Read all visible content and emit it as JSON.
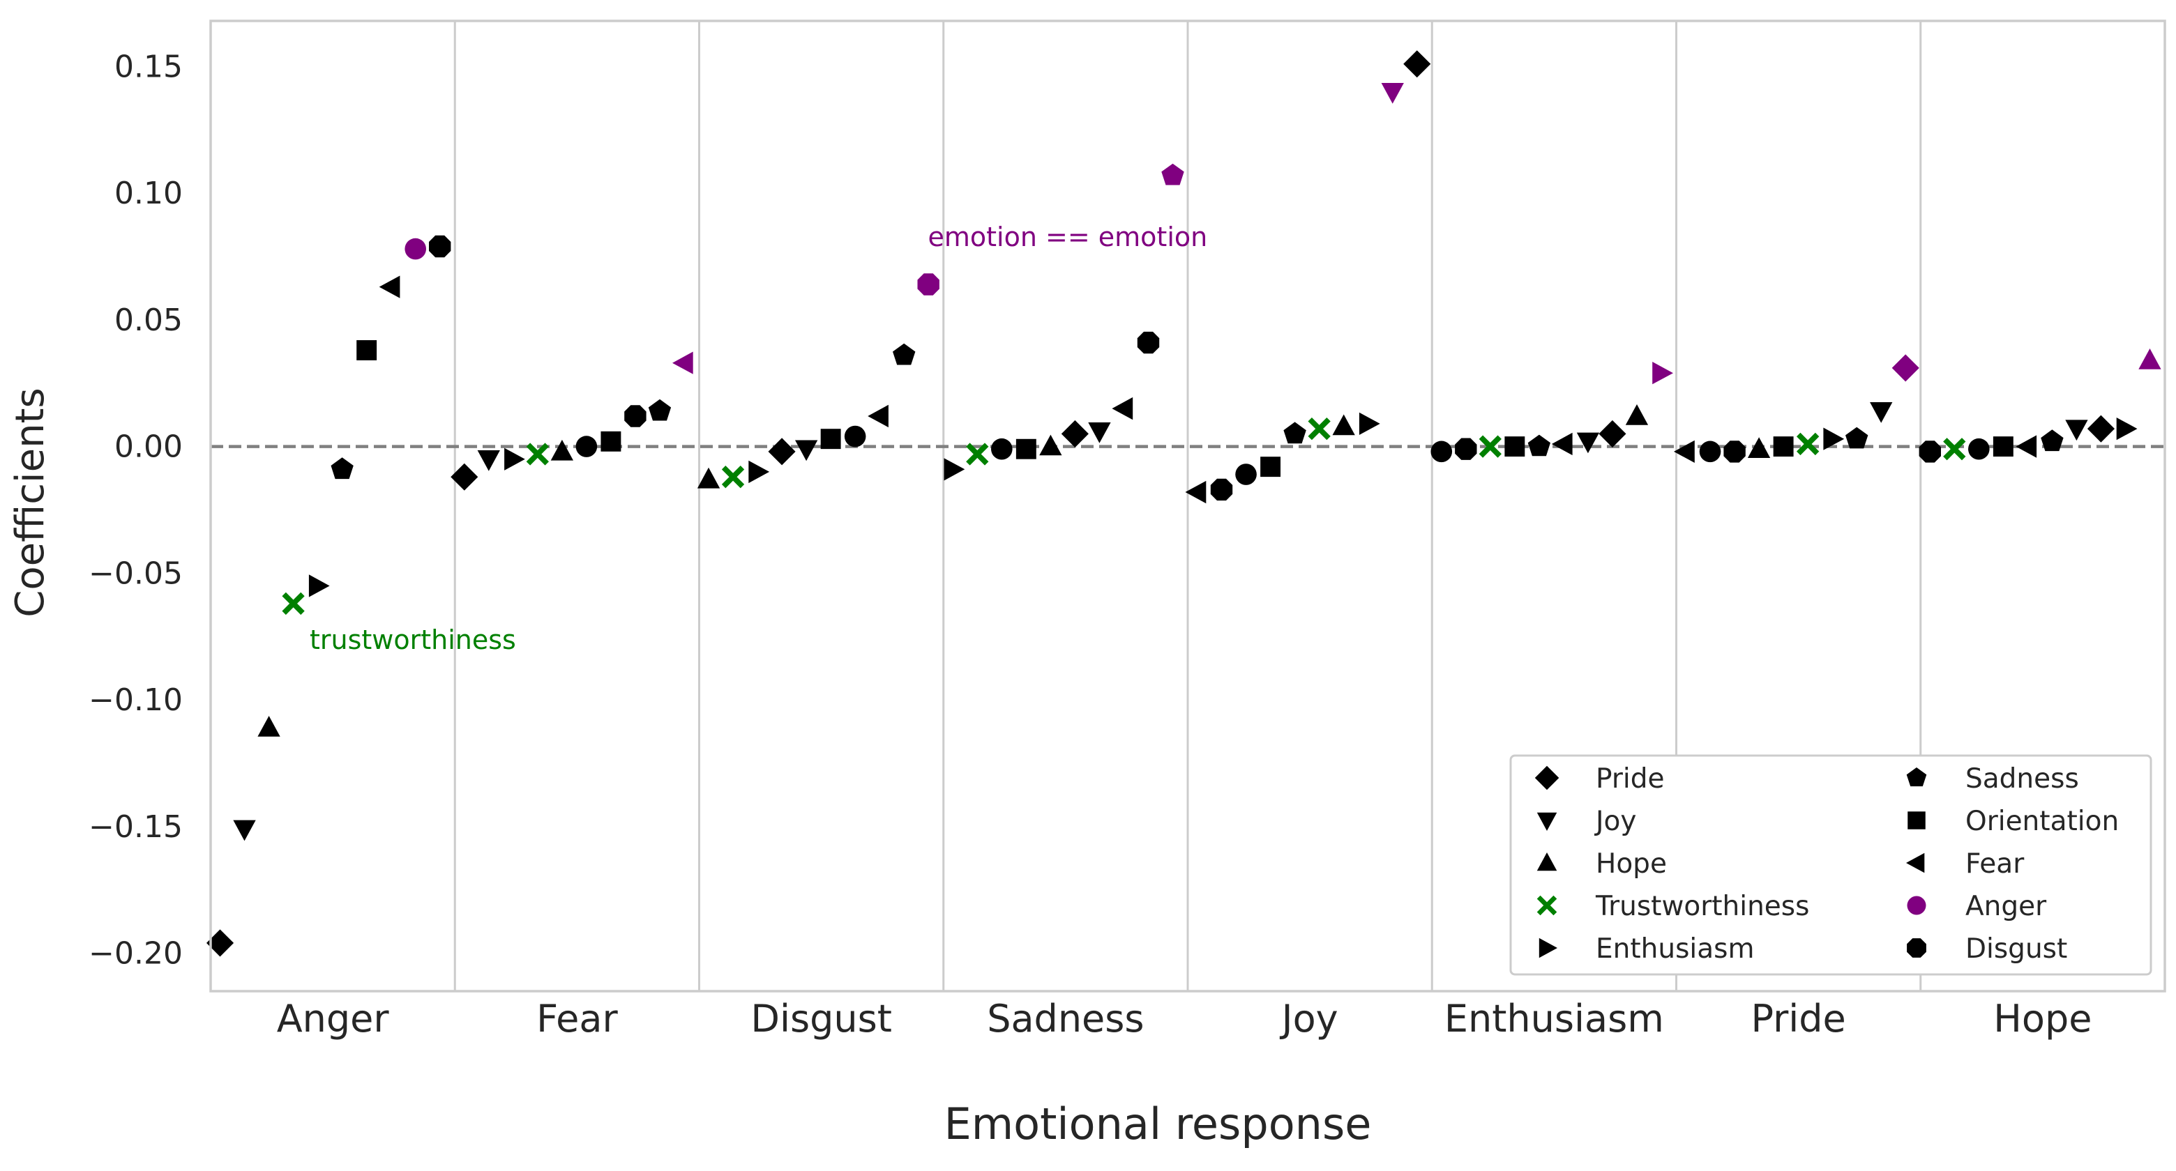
{
  "chart_data": {
    "type": "scatter",
    "xlabel": "Emotional response",
    "ylabel": "Coefficients",
    "ylim": [
      -0.215,
      0.168
    ],
    "yticks": [
      -0.2,
      -0.15,
      -0.1,
      -0.05,
      0.0,
      0.05,
      0.1,
      0.15
    ],
    "ytick_labels": [
      "−0.20",
      "−0.15",
      "−0.10",
      "−0.05",
      "0.00",
      "0.05",
      "0.10",
      "0.15"
    ],
    "categories": [
      "Anger",
      "Fear",
      "Disgust",
      "Sadness",
      "Joy",
      "Enthusiasm",
      "Pride",
      "Hope"
    ],
    "reference_line": 0.0,
    "grid": "vertical separators between groups",
    "legend_position": "lower right",
    "legend": [
      {
        "label": "Pride",
        "marker": "diamond",
        "color": "#000000"
      },
      {
        "label": "Joy",
        "marker": "triangle-down",
        "color": "#000000"
      },
      {
        "label": "Hope",
        "marker": "triangle-up",
        "color": "#000000"
      },
      {
        "label": "Trustworthiness",
        "marker": "x",
        "color": "#008000"
      },
      {
        "label": "Enthusiasm",
        "marker": "triangle-right",
        "color": "#000000"
      },
      {
        "label": "Sadness",
        "marker": "pentagon",
        "color": "#000000"
      },
      {
        "label": "Orientation",
        "marker": "square",
        "color": "#000000"
      },
      {
        "label": "Fear",
        "marker": "triangle-left",
        "color": "#000000"
      },
      {
        "label": "Anger",
        "marker": "circle",
        "color": "#800080"
      },
      {
        "label": "Disgust",
        "marker": "octagon",
        "color": "#000000"
      }
    ],
    "annotations": [
      {
        "text": "trustworthiness",
        "group": "Anger",
        "y": -0.076,
        "color": "#008000"
      },
      {
        "text": "emotion == emotion",
        "group": "Disgust",
        "y": 0.083,
        "color": "#800080"
      }
    ],
    "colors": {
      "black": "#000000",
      "highlight": "#800080",
      "trust": "#008000"
    },
    "groups": [
      {
        "name": "Anger",
        "points": [
          {
            "m": "diamond",
            "y": -0.196
          },
          {
            "m": "triangle-down",
            "y": -0.151
          },
          {
            "m": "triangle-up",
            "y": -0.111
          },
          {
            "m": "x",
            "y": -0.062
          },
          {
            "m": "triangle-right",
            "y": -0.055
          },
          {
            "m": "pentagon",
            "y": -0.009
          },
          {
            "m": "square",
            "y": 0.038
          },
          {
            "m": "triangle-left",
            "y": 0.063
          },
          {
            "m": "circle",
            "y": 0.078
          },
          {
            "m": "octagon",
            "y": 0.079
          }
        ]
      },
      {
        "name": "Fear",
        "points": [
          {
            "m": "diamond",
            "y": -0.012
          },
          {
            "m": "triangle-down",
            "y": -0.005
          },
          {
            "m": "triangle-right",
            "y": -0.005
          },
          {
            "m": "x",
            "y": -0.003
          },
          {
            "m": "triangle-up",
            "y": -0.002
          },
          {
            "m": "circle",
            "y": 0.0
          },
          {
            "m": "square",
            "y": 0.002
          },
          {
            "m": "octagon",
            "y": 0.012
          },
          {
            "m": "pentagon",
            "y": 0.014
          },
          {
            "m": "triangle-left",
            "y": 0.033
          }
        ]
      },
      {
        "name": "Disgust",
        "points": [
          {
            "m": "triangle-up",
            "y": -0.013
          },
          {
            "m": "x",
            "y": -0.012
          },
          {
            "m": "triangle-right",
            "y": -0.01
          },
          {
            "m": "diamond",
            "y": -0.002
          },
          {
            "m": "triangle-down",
            "y": -0.001
          },
          {
            "m": "square",
            "y": 0.003
          },
          {
            "m": "circle",
            "y": 0.004
          },
          {
            "m": "triangle-left",
            "y": 0.012
          },
          {
            "m": "pentagon",
            "y": 0.036
          },
          {
            "m": "octagon",
            "y": 0.064
          }
        ]
      },
      {
        "name": "Sadness",
        "points": [
          {
            "m": "triangle-right",
            "y": -0.009
          },
          {
            "m": "x",
            "y": -0.003
          },
          {
            "m": "circle",
            "y": -0.001
          },
          {
            "m": "square",
            "y": -0.001
          },
          {
            "m": "triangle-up",
            "y": 0.0
          },
          {
            "m": "diamond",
            "y": 0.005
          },
          {
            "m": "triangle-down",
            "y": 0.006
          },
          {
            "m": "triangle-left",
            "y": 0.015
          },
          {
            "m": "octagon",
            "y": 0.041
          },
          {
            "m": "pentagon",
            "y": 0.107
          }
        ]
      },
      {
        "name": "Joy",
        "points": [
          {
            "m": "triangle-left",
            "y": -0.018
          },
          {
            "m": "octagon",
            "y": -0.017
          },
          {
            "m": "circle",
            "y": -0.011
          },
          {
            "m": "square",
            "y": -0.008
          },
          {
            "m": "pentagon",
            "y": 0.005
          },
          {
            "m": "x",
            "y": 0.007
          },
          {
            "m": "triangle-up",
            "y": 0.008
          },
          {
            "m": "triangle-right",
            "y": 0.009
          },
          {
            "m": "triangle-down",
            "y": 0.14
          },
          {
            "m": "diamond",
            "y": 0.151
          }
        ]
      },
      {
        "name": "Enthusiasm",
        "points": [
          {
            "m": "circle",
            "y": -0.002
          },
          {
            "m": "octagon",
            "y": -0.001
          },
          {
            "m": "x",
            "y": 0.0
          },
          {
            "m": "square",
            "y": 0.0
          },
          {
            "m": "pentagon",
            "y": 0.0
          },
          {
            "m": "triangle-left",
            "y": 0.001
          },
          {
            "m": "triangle-down",
            "y": 0.002
          },
          {
            "m": "diamond",
            "y": 0.005
          },
          {
            "m": "triangle-up",
            "y": 0.012
          },
          {
            "m": "triangle-right",
            "y": 0.029
          }
        ]
      },
      {
        "name": "Pride",
        "points": [
          {
            "m": "triangle-left",
            "y": -0.002
          },
          {
            "m": "circle",
            "y": -0.002
          },
          {
            "m": "octagon",
            "y": -0.002
          },
          {
            "m": "triangle-up",
            "y": -0.001
          },
          {
            "m": "square",
            "y": 0.0
          },
          {
            "m": "x",
            "y": 0.001
          },
          {
            "m": "triangle-right",
            "y": 0.003
          },
          {
            "m": "pentagon",
            "y": 0.003
          },
          {
            "m": "triangle-down",
            "y": 0.014
          },
          {
            "m": "diamond",
            "y": 0.031
          }
        ]
      },
      {
        "name": "Hope",
        "points": [
          {
            "m": "octagon",
            "y": -0.002
          },
          {
            "m": "x",
            "y": -0.001
          },
          {
            "m": "circle",
            "y": -0.001
          },
          {
            "m": "square",
            "y": 0.0
          },
          {
            "m": "triangle-left",
            "y": 0.0
          },
          {
            "m": "pentagon",
            "y": 0.002
          },
          {
            "m": "triangle-down",
            "y": 0.007
          },
          {
            "m": "diamond",
            "y": 0.007
          },
          {
            "m": "triangle-right",
            "y": 0.007
          },
          {
            "m": "triangle-up",
            "y": 0.034
          }
        ]
      }
    ],
    "highlighted": [
      {
        "group": "Anger",
        "marker": "circle"
      },
      {
        "group": "Fear",
        "marker": "triangle-left"
      },
      {
        "group": "Disgust",
        "marker": "octagon"
      },
      {
        "group": "Sadness",
        "marker": "pentagon"
      },
      {
        "group": "Joy",
        "marker": "triangle-down"
      },
      {
        "group": "Enthusiasm",
        "marker": "triangle-right"
      },
      {
        "group": "Pride",
        "marker": "diamond"
      },
      {
        "group": "Hope",
        "marker": "triangle-up"
      }
    ]
  }
}
